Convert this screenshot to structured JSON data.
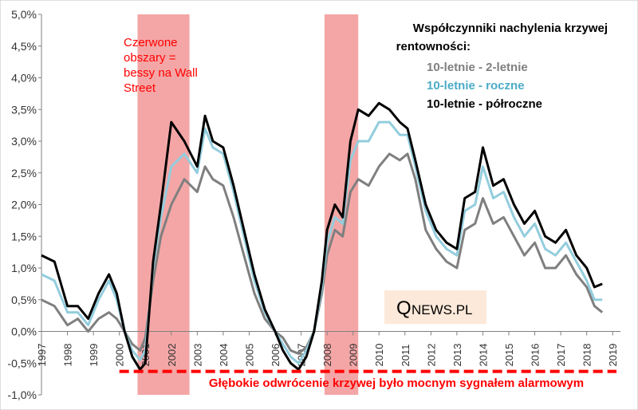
{
  "chart_data": {
    "type": "line",
    "title": "Współczynniki nachylenia krzywej rentowności:",
    "title_lines": [
      "Współczynniki nachylenia krzywej",
      "rentowności:"
    ],
    "x_ticks": [
      "1997",
      "1998",
      "1999",
      "2000",
      "2001",
      "2002",
      "2003",
      "2004",
      "2005",
      "2006",
      "2007",
      "2008",
      "2009",
      "2010",
      "2011",
      "2012",
      "2013",
      "2014",
      "2015",
      "2016",
      "2017",
      "2018",
      "2019"
    ],
    "y_ticks": [
      "5,0%",
      "4,5%",
      "4,0%",
      "3,5%",
      "3,0%",
      "2,5%",
      "2,0%",
      "1,5%",
      "1,0%",
      "0,5%",
      "0,0%",
      "-0,5%",
      "-1,0%"
    ],
    "xlim": [
      1997,
      2019.3
    ],
    "ylim": [
      -1.0,
      5.0
    ],
    "series": [
      {
        "name": "10-letnie - 2-letnie",
        "color": "#7f7f7f",
        "x": [
          1997.0,
          1997.5,
          1998.0,
          1998.4,
          1998.8,
          1999.2,
          1999.6,
          1999.9,
          2000.2,
          2000.5,
          2000.8,
          2001.0,
          2001.3,
          2001.6,
          2002.0,
          2002.5,
          2003.0,
          2003.3,
          2003.6,
          2004.0,
          2004.4,
          2004.8,
          2005.2,
          2005.6,
          2006.0,
          2006.3,
          2006.6,
          2006.9,
          2007.2,
          2007.5,
          2007.8,
          2008.0,
          2008.3,
          2008.6,
          2008.9,
          2009.2,
          2009.6,
          2010.0,
          2010.4,
          2010.8,
          2011.1,
          2011.4,
          2011.8,
          2012.2,
          2012.6,
          2013.0,
          2013.3,
          2013.7,
          2014.0,
          2014.4,
          2014.8,
          2015.2,
          2015.6,
          2016.0,
          2016.4,
          2016.8,
          2017.2,
          2017.6,
          2018.0,
          2018.3,
          2018.6
        ],
        "values": [
          0.5,
          0.4,
          0.1,
          0.2,
          0.0,
          0.2,
          0.3,
          0.2,
          0.0,
          -0.2,
          -0.3,
          -0.1,
          0.8,
          1.5,
          2.0,
          2.4,
          2.2,
          2.6,
          2.4,
          2.3,
          1.8,
          1.2,
          0.6,
          0.2,
          0.0,
          -0.1,
          -0.3,
          -0.35,
          -0.25,
          0.0,
          0.6,
          1.2,
          1.6,
          1.5,
          2.2,
          2.4,
          2.3,
          2.6,
          2.8,
          2.7,
          2.8,
          2.4,
          1.6,
          1.3,
          1.1,
          1.0,
          1.6,
          1.7,
          2.1,
          1.7,
          1.8,
          1.5,
          1.2,
          1.4,
          1.0,
          1.0,
          1.2,
          0.9,
          0.7,
          0.4,
          0.3
        ]
      },
      {
        "name": "10-letnie - roczne",
        "color": "#93cddd",
        "x": [
          1997.0,
          1997.5,
          1998.0,
          1998.4,
          1998.8,
          1999.2,
          1999.6,
          1999.9,
          2000.2,
          2000.5,
          2000.8,
          2001.0,
          2001.3,
          2001.6,
          2002.0,
          2002.5,
          2003.0,
          2003.3,
          2003.6,
          2004.0,
          2004.4,
          2004.8,
          2005.2,
          2005.6,
          2006.0,
          2006.3,
          2006.6,
          2006.9,
          2007.2,
          2007.5,
          2007.8,
          2008.0,
          2008.3,
          2008.6,
          2008.9,
          2009.2,
          2009.6,
          2010.0,
          2010.4,
          2010.8,
          2011.1,
          2011.4,
          2011.8,
          2012.2,
          2012.6,
          2013.0,
          2013.3,
          2013.7,
          2014.0,
          2014.4,
          2014.8,
          2015.2,
          2015.6,
          2016.0,
          2016.4,
          2016.8,
          2017.2,
          2017.6,
          2018.0,
          2018.3,
          2018.6
        ],
        "values": [
          0.9,
          0.8,
          0.3,
          0.3,
          0.1,
          0.5,
          0.8,
          0.5,
          0.0,
          -0.3,
          -0.45,
          -0.3,
          1.0,
          1.8,
          2.6,
          2.8,
          2.5,
          3.2,
          2.9,
          2.8,
          2.2,
          1.5,
          0.8,
          0.3,
          0.0,
          -0.2,
          -0.4,
          -0.5,
          -0.3,
          0.0,
          0.7,
          1.4,
          1.8,
          1.7,
          2.7,
          3.0,
          3.0,
          3.3,
          3.3,
          3.1,
          3.1,
          2.6,
          1.9,
          1.5,
          1.3,
          1.2,
          1.9,
          2.0,
          2.6,
          2.1,
          2.2,
          1.8,
          1.5,
          1.7,
          1.3,
          1.2,
          1.4,
          1.1,
          0.8,
          0.5,
          0.5
        ]
      },
      {
        "name": "10-letnie - półroczne",
        "color": "#000000",
        "x": [
          1997.0,
          1997.5,
          1998.0,
          1998.4,
          1998.8,
          1999.2,
          1999.6,
          1999.9,
          2000.2,
          2000.5,
          2000.8,
          2001.0,
          2001.3,
          2001.6,
          2002.0,
          2002.5,
          2003.0,
          2003.3,
          2003.6,
          2004.0,
          2004.4,
          2004.8,
          2005.2,
          2005.6,
          2006.0,
          2006.3,
          2006.6,
          2006.9,
          2007.2,
          2007.5,
          2007.8,
          2008.0,
          2008.3,
          2008.6,
          2008.9,
          2009.2,
          2009.6,
          2010.0,
          2010.4,
          2010.8,
          2011.1,
          2011.4,
          2011.8,
          2012.2,
          2012.6,
          2013.0,
          2013.3,
          2013.7,
          2014.0,
          2014.4,
          2014.8,
          2015.2,
          2015.6,
          2016.0,
          2016.4,
          2016.8,
          2017.2,
          2017.6,
          2018.0,
          2018.3,
          2018.6
        ],
        "values": [
          1.2,
          1.1,
          0.4,
          0.4,
          0.2,
          0.6,
          0.9,
          0.6,
          0.0,
          -0.4,
          -0.6,
          -0.5,
          1.1,
          2.0,
          3.3,
          3.0,
          2.6,
          3.4,
          3.0,
          2.9,
          2.3,
          1.6,
          0.9,
          0.35,
          0.0,
          -0.3,
          -0.5,
          -0.6,
          -0.4,
          0.0,
          0.8,
          1.6,
          2.0,
          1.8,
          3.0,
          3.5,
          3.4,
          3.6,
          3.5,
          3.3,
          3.2,
          2.7,
          2.0,
          1.6,
          1.4,
          1.3,
          2.1,
          2.2,
          2.9,
          2.3,
          2.4,
          2.0,
          1.7,
          1.9,
          1.5,
          1.4,
          1.6,
          1.2,
          1.0,
          0.7,
          0.75
        ]
      }
    ],
    "shaded_ranges": [
      [
        2000.7,
        2002.7
      ],
      [
        2007.9,
        2009.2
      ]
    ],
    "shaded_label": "Czerwone obszary = bessy na Wall Street",
    "shaded_label_lines": [
      "Czerwone",
      "obszary =",
      "bessy na Wall",
      "Street"
    ],
    "threshold_y": -0.63,
    "threshold_x_start": 2000.0,
    "threshold_label": "Głębokie odwrócenie krzywej było mocnym sygnałem alarmowym",
    "logo": {
      "q": "Q",
      "text": "NEWS.PL"
    }
  },
  "colors": {
    "shade": "#f4a6a6",
    "threshold": "#ff0000",
    "label_red": "#ff0000",
    "gray": "#7f7f7f",
    "teal": "#4bacc6",
    "black": "#000000",
    "logo_bg": "#fde9d9",
    "grid": "#d9d9d9"
  }
}
